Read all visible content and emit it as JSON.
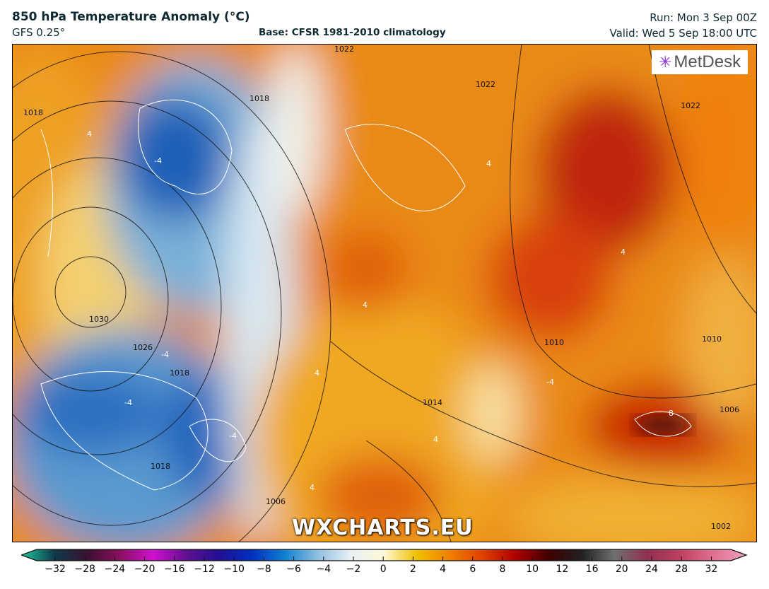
{
  "header": {
    "title": "850 hPa Temperature Anomaly (°C)",
    "model": "GFS 0.25°",
    "base": "Base: CFSR 1981-2010 climatology",
    "run": "Run: Mon 3 Sep 00Z",
    "valid": "Valid: Wed 5 Sep 18:00 UTC"
  },
  "map": {
    "logo": "MetDesk",
    "watermark": "WXCHARTS.EU",
    "isobar_labels": [
      "1030",
      "1026",
      "1022",
      "1018",
      "1018",
      "1018",
      "1014",
      "1010",
      "1010",
      "1006",
      "1006",
      "1002",
      "1022",
      "1022",
      "1018"
    ],
    "anomaly_labels": [
      "4",
      "-4",
      "-4",
      "-4",
      "-4",
      "4",
      "4",
      "4",
      "4",
      "-4",
      "8",
      "4",
      "4"
    ]
  },
  "colorbar": {
    "ticks": [
      "−32",
      "−28",
      "−24",
      "−20",
      "−16",
      "−12",
      "−10",
      "−8",
      "−6",
      "−4",
      "−2",
      "0",
      "2",
      "4",
      "6",
      "8",
      "10",
      "12",
      "16",
      "20",
      "24",
      "28",
      "32"
    ],
    "colors": [
      "#1ec9a0",
      "#0d3b4a",
      "#3a1030",
      "#8a1060",
      "#d010d0",
      "#601090",
      "#201090",
      "#0030c0",
      "#1080d0",
      "#90c0e0",
      "#e8f0f6",
      "#fff8d8",
      "#f0c000",
      "#f08000",
      "#e04000",
      "#b00000",
      "#400000",
      "#202020",
      "#707070",
      "#903050",
      "#c04060",
      "#e07090",
      "#f0a0c0"
    ]
  }
}
